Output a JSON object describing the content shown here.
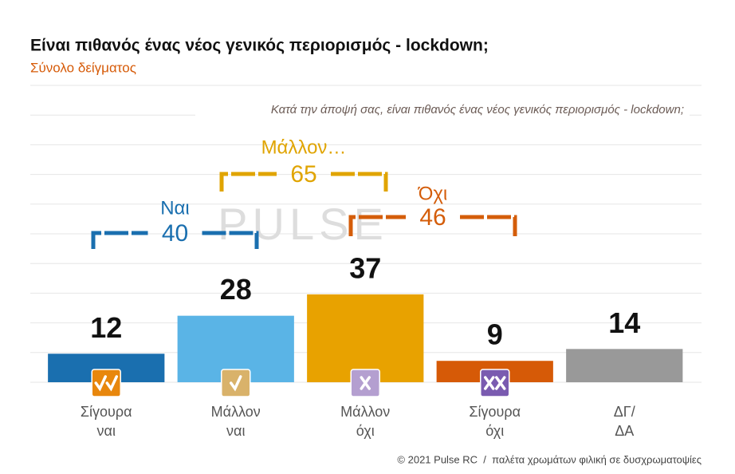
{
  "chart_data": {
    "type": "bar",
    "title": "Είναι πιθανός ένας νέος γενικός περιορισμός - lockdown;",
    "subtitle": "Σύνολο δείγματος",
    "annotation": "Κατά την άποψή σας, είναι πιθανός ένας νέος γενικός περιορισμός - lockdown;",
    "watermark": "PULSE",
    "categories": [
      "Σίγουρα\nναι",
      "Μάλλον\nναι",
      "Μάλλον\nόχι",
      "Σίγουρα\nόχι",
      "ΔΓ/\nΔΑ"
    ],
    "values": [
      12,
      28,
      37,
      9,
      14
    ],
    "colors": [
      "#1a6faf",
      "#5ab4e6",
      "#e8a200",
      "#d65a07",
      "#999999"
    ],
    "groups": [
      {
        "label": "Ναι",
        "value": 40,
        "color": "#1a6faf"
      },
      {
        "label": "Μάλλον…",
        "value": 65,
        "color": "#e0a400"
      },
      {
        "label": "Όχι",
        "value": 46,
        "color": "#d45d0a"
      }
    ],
    "ylim": [
      0,
      125
    ],
    "yticks": [
      0,
      12.5,
      25,
      37.5,
      50,
      62.5,
      75,
      87.5,
      100,
      112.5,
      125
    ],
    "grid": true,
    "footer": "© 2021 Pulse RC  /  παλέτα χρωμάτων φιλική σε δυσχρωματοψίες"
  }
}
